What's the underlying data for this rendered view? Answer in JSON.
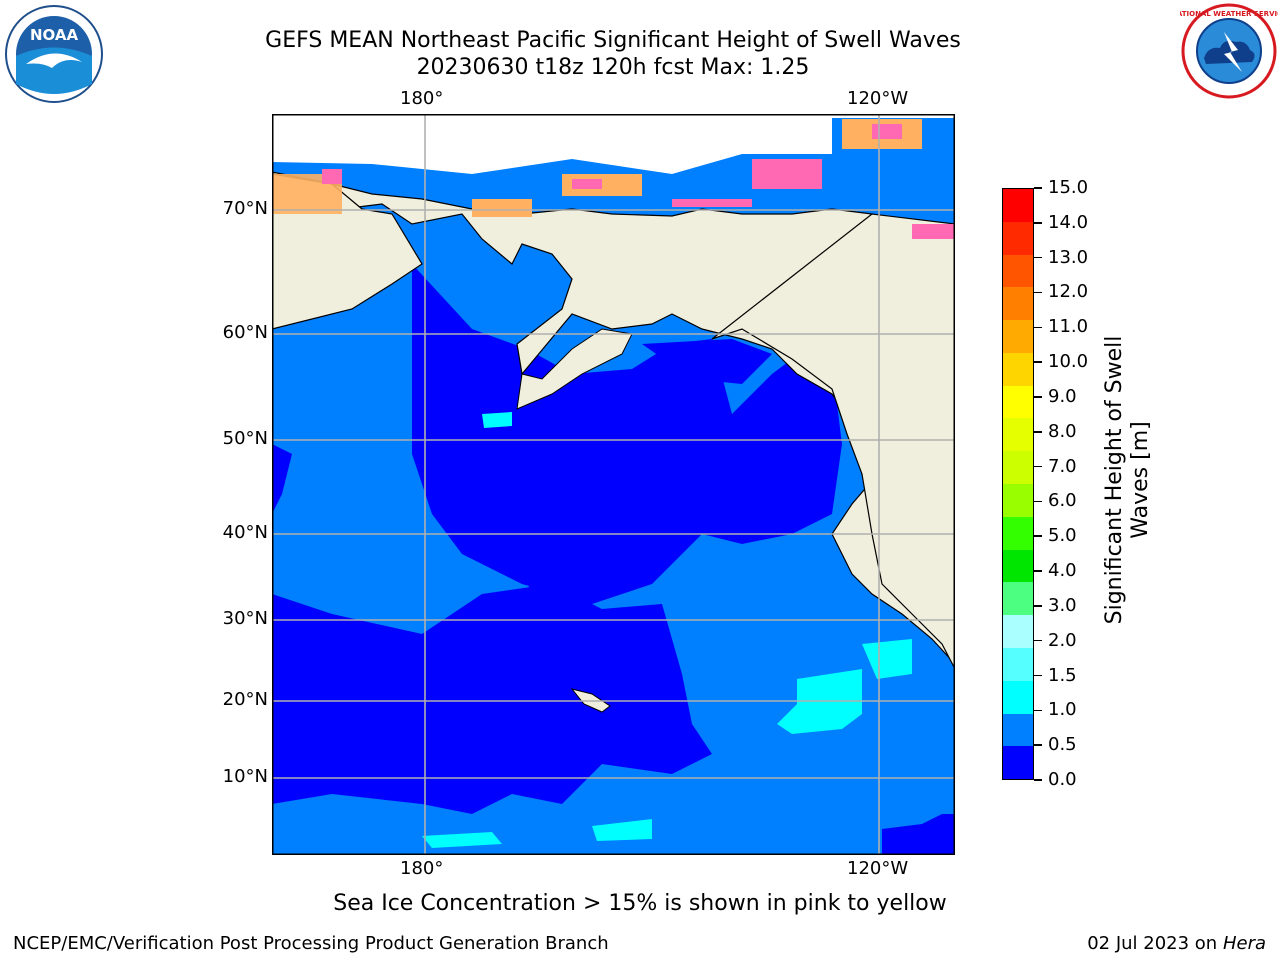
{
  "title": {
    "line1": "GEFS MEAN Northeast Pacific Significant Height of Swell Waves",
    "line2": "20230630 t18z 120h fcst   Max: 1.25"
  },
  "logos": {
    "left": {
      "name": "noaa-logo",
      "text": "NOAA"
    },
    "right": {
      "name": "nws-logo",
      "text": "NATIONAL WEATHER SERVICE"
    }
  },
  "map": {
    "lon_labels_top": [
      "180°",
      "120°W"
    ],
    "lon_labels_bottom": [
      "180°",
      "120°W"
    ],
    "lat_labels": [
      "70°N",
      "60°N",
      "50°N",
      "40°N",
      "30°N",
      "20°N",
      "10°N"
    ],
    "colors": {
      "land": "#f0eedc",
      "swell_0": "#0000ff",
      "swell_05": "#007fff",
      "swell_1": "#00ffff",
      "ice": "#ff69b4"
    }
  },
  "colorbar": {
    "label_line1": "Significant Height of Swell",
    "label_line2": "Waves [m]",
    "ticks": [
      "15.0",
      "14.0",
      "13.0",
      "12.0",
      "11.0",
      "10.0",
      "9.0",
      "8.0",
      "7.0",
      "6.0",
      "5.0",
      "4.0",
      "3.0",
      "2.0",
      "1.5",
      "1.0",
      "0.5",
      "0.0"
    ],
    "colors_top_to_bottom": [
      "#ff0000",
      "#ff2a00",
      "#ff5500",
      "#ff8000",
      "#ffaa00",
      "#ffd500",
      "#ffff00",
      "#e5ff00",
      "#ccff00",
      "#99ff00",
      "#33ff00",
      "#00e600",
      "#4dff80",
      "#aaffff",
      "#55ffff",
      "#00ffff",
      "#007fff",
      "#0000ff"
    ]
  },
  "note": "Sea Ice Concentration > 15% is shown in pink to yellow",
  "footer": {
    "left": "NCEP/EMC/Verification Post Processing Product Generation Branch",
    "right_date": "02 Jul 2023 on ",
    "right_machine": "Hera"
  }
}
